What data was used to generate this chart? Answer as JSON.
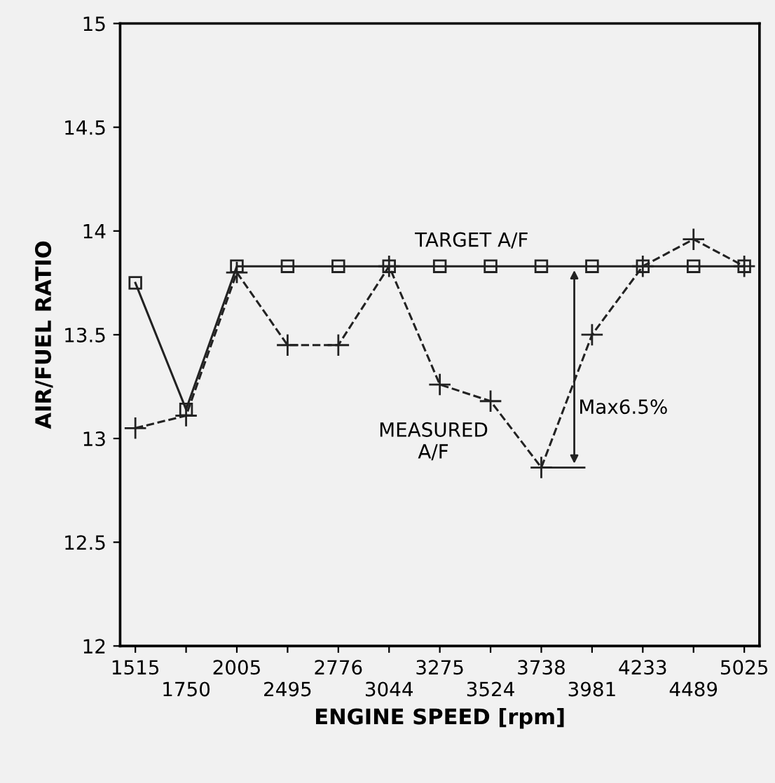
{
  "chart_data": {
    "type": "line",
    "xlabel": "ENGINE SPEED [rpm]",
    "ylabel": "AIR/FUEL RATIO",
    "categories": [
      "1515",
      "1750",
      "2005",
      "2495",
      "2776",
      "3044",
      "3275",
      "3524",
      "3738",
      "3981",
      "4233",
      "4489",
      "5025"
    ],
    "series": [
      {
        "color": "#222222",
        "marker": "square",
        "line_style": "solid",
        "values": [
          13.75,
          13.14,
          13.83,
          13.83,
          13.83,
          13.83,
          13.83,
          13.83,
          13.83,
          13.83,
          13.83,
          13.83,
          13.83
        ]
      },
      {
        "color": "#222222",
        "marker": "cross",
        "line_style": "dashed",
        "values": [
          13.05,
          13.11,
          13.8,
          13.45,
          13.45,
          13.83,
          13.26,
          13.18,
          12.86,
          13.5,
          13.83,
          13.96,
          13.83
        ]
      }
    ],
    "ylim": [
      12,
      15
    ],
    "yticks": [
      12,
      12.5,
      13,
      13.5,
      14,
      14.5,
      15
    ],
    "annotations": [
      "TARGET A/F",
      "MEASURED\nA/F",
      "Max6.5%"
    ],
    "grid": false
  }
}
